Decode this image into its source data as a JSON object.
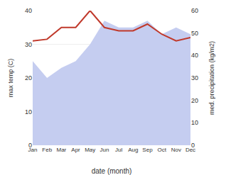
{
  "chart_data": {
    "type": "line",
    "xlabel": "date (month)",
    "ylabel": "max temp (C)",
    "y2label": "med. precipitation (kg/m2)",
    "categories": [
      "Jan",
      "Feb",
      "Mar",
      "Apr",
      "May",
      "Jun",
      "Jul",
      "Aug",
      "Sep",
      "Oct",
      "Nov",
      "Dec"
    ],
    "series": [
      {
        "type": "area",
        "color": "#c5cdf0",
        "values": [
          25,
          20,
          23,
          25,
          30,
          37,
          35,
          35,
          37,
          33,
          35,
          33
        ]
      },
      {
        "type": "line",
        "color": "#c0392b",
        "values": [
          31,
          31.5,
          35,
          35,
          40,
          35,
          34,
          34,
          36,
          33,
          31,
          32
        ]
      }
    ],
    "ylim": [
      0,
      40
    ],
    "yticks": [
      0,
      10,
      20,
      30,
      40
    ],
    "y2lim": [
      0,
      60
    ],
    "y2ticks": [
      0,
      10,
      20,
      30,
      40,
      50,
      60
    ],
    "grid": true
  }
}
